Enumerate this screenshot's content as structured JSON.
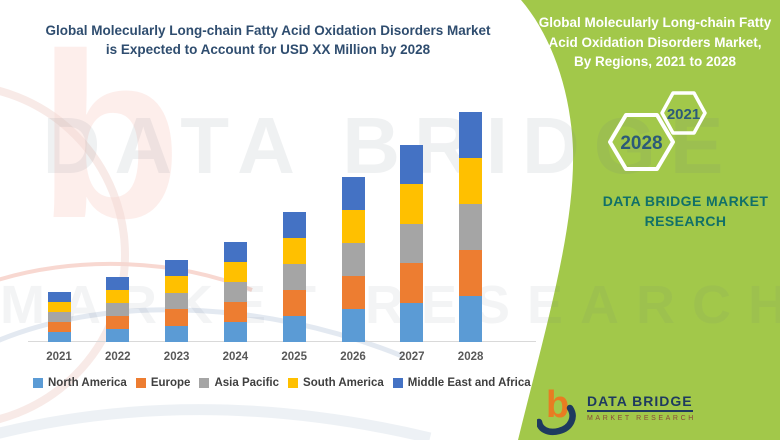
{
  "header": {
    "title_line1": "Global Molecularly Long-chain Fatty Acid Oxidation Disorders Market",
    "title_line2": "is Expected to Account for USD XX Million by 2028"
  },
  "side_panel": {
    "title_line1": "Global Molecularly Long-chain Fatty",
    "title_line2": "Acid Oxidation Disorders Market,",
    "title_line3": "By Regions, 2021 to 2028",
    "hexagon_back_year": "2028",
    "hexagon_front_year": "2021",
    "brand_line1": "DATA BRIDGE MARKET",
    "brand_line2": "RESEARCH"
  },
  "logo": {
    "name": "DATA BRIDGE",
    "tagline": "MARKET RESEARCH"
  },
  "watermark": {
    "letter": "b",
    "row1": "DATA BRIDGE",
    "row2": "MARKET RESEARCH"
  },
  "colors": {
    "panel_green": "#a2c84a",
    "title_navy": "#2f4d6f",
    "hexagon_year_text": "#2c5a78",
    "brand_teal": "#117068",
    "logo_navy": "#1e3a5f",
    "logo_orange": "#e87c22",
    "logo_tagline_red": "#8a4a3a",
    "axis_label_gray": "#595959",
    "axis_line_gray": "#d9d9d9"
  },
  "chart_data": {
    "type": "bar",
    "stacked": true,
    "title": "Global Molecularly Long-chain Fatty Acid Oxidation Disorders Market is Expected to Account for USD XX Million by 2028",
    "categories": [
      "2021",
      "2022",
      "2023",
      "2024",
      "2025",
      "2026",
      "2027",
      "2028"
    ],
    "series": [
      {
        "name": "North America",
        "color": "#5B9BD5",
        "values": [
          10,
          13,
          16.5,
          20,
          26,
          33,
          39.5,
          46
        ]
      },
      {
        "name": "Europe",
        "color": "#ED7D31",
        "values": [
          10,
          13,
          16.5,
          20,
          26,
          33,
          39.5,
          46
        ]
      },
      {
        "name": "Asia Pacific",
        "color": "#A5A5A5",
        "values": [
          10,
          13,
          16.5,
          20,
          26,
          33,
          39.5,
          46
        ]
      },
      {
        "name": "South America",
        "color": "#FFC000",
        "values": [
          10,
          13,
          16.5,
          20,
          26,
          33,
          39.5,
          46
        ]
      },
      {
        "name": "Middle East and Africa",
        "color": "#4472C4",
        "values": [
          10,
          13,
          16.5,
          20,
          26,
          33,
          39.5,
          46
        ]
      }
    ],
    "stack_totals": [
      50,
      65,
      82.5,
      100,
      130,
      165,
      197.5,
      230
    ],
    "xlabel": "",
    "ylabel": "",
    "value_axis_shown": false,
    "gridlines": false,
    "legend_position": "bottom-left",
    "values_note": "Value axis is not shown (market sized as USD XX Million); series values are relative units estimated from bar heights, equal regional split per year"
  }
}
